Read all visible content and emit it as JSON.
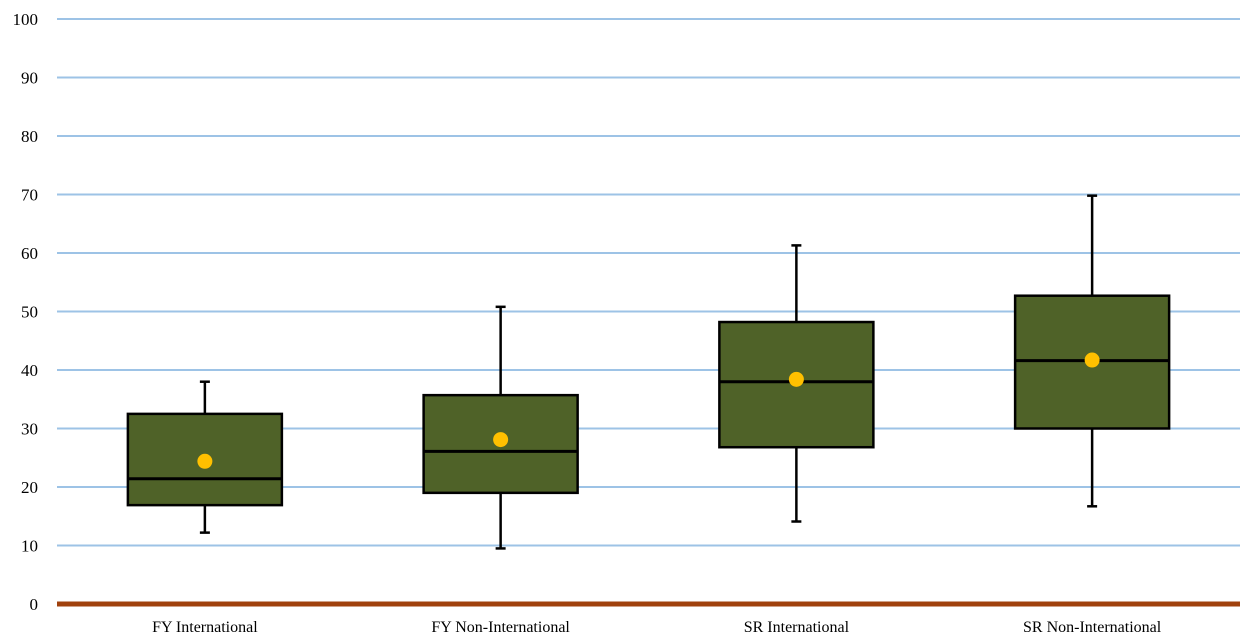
{
  "chart_data": {
    "type": "box",
    "title": "",
    "xlabel": "",
    "ylabel": "",
    "ylim": [
      0,
      100
    ],
    "yticks": [
      0,
      10,
      20,
      30,
      40,
      50,
      60,
      70,
      80,
      90,
      100
    ],
    "grid": true,
    "categories": [
      "FY International",
      "FY Non-International",
      "SR International",
      "SR Non-International"
    ],
    "boxes": [
      {
        "min": 12.2,
        "q1": 16.9,
        "median": 21.4,
        "q3": 32.5,
        "max": 38.0,
        "mean": 24.4
      },
      {
        "min": 9.5,
        "q1": 19.0,
        "median": 26.1,
        "q3": 35.7,
        "max": 50.8,
        "mean": 28.1
      },
      {
        "min": 14.1,
        "q1": 26.8,
        "median": 38.0,
        "q3": 48.2,
        "max": 61.3,
        "mean": 38.4
      },
      {
        "min": 16.7,
        "q1": 30.0,
        "median": 41.6,
        "q3": 52.7,
        "max": 69.8,
        "mean": 41.7
      }
    ],
    "colors": {
      "box_fill": "#4f6228",
      "box_stroke": "#000000",
      "mean_marker": "#ffc000",
      "gridline": "#9dc3e6",
      "x_axis": "#a0410d"
    }
  }
}
